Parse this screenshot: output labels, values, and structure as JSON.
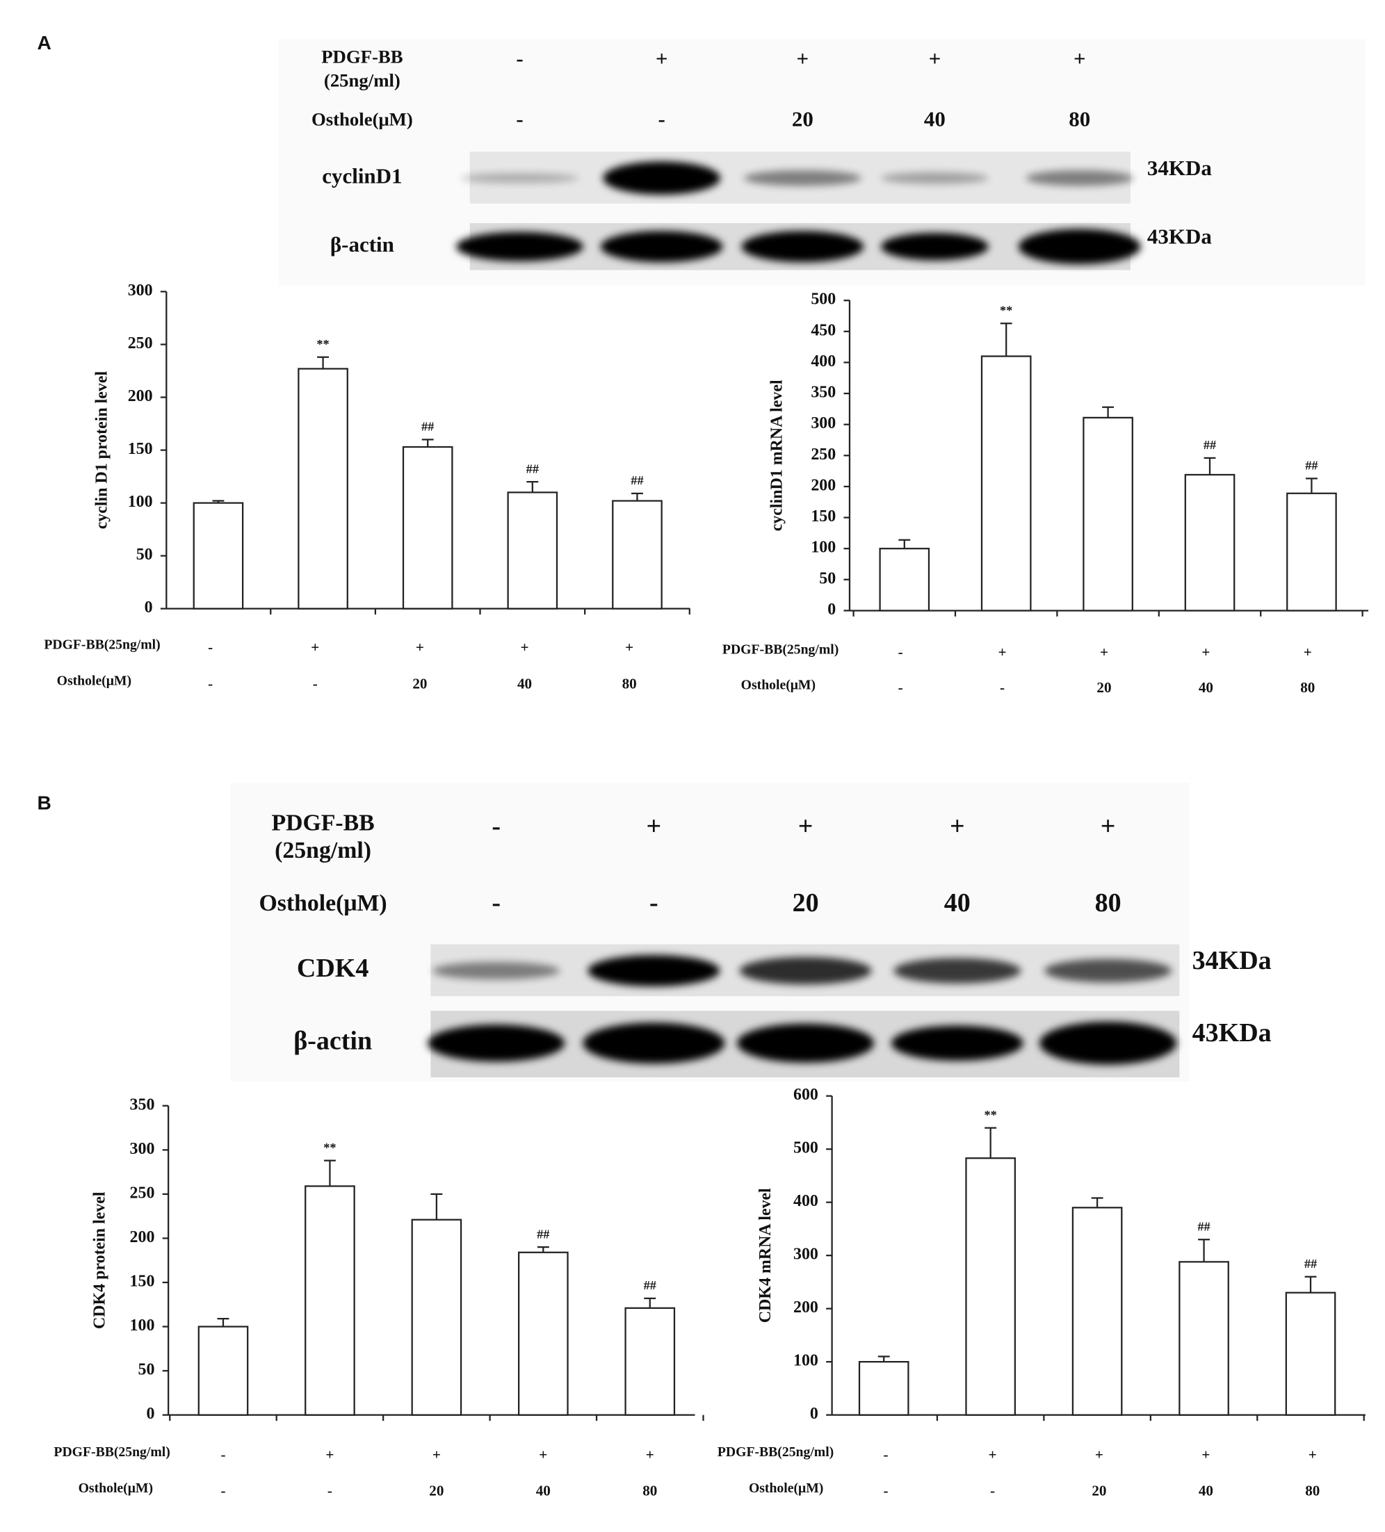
{
  "panel_labels": [
    "A",
    "B"
  ],
  "blots": [
    {
      "treatments": [
        {
          "name_lines": [
            "PDGF-BB",
            "(25ng/ml)"
          ],
          "labels": [
            "-",
            "+",
            "+",
            "+",
            "+"
          ]
        },
        {
          "name_lines": [
            "Osthole(μM)"
          ],
          "labels": [
            "-",
            "-",
            "20",
            "40",
            "80"
          ]
        }
      ],
      "bands": [
        {
          "name": "cyclinD1",
          "size": "34KDa"
        },
        {
          "name": "β-actin",
          "size": "43KDa"
        }
      ]
    },
    {
      "treatments": [
        {
          "name_lines": [
            "PDGF-BB",
            "(25ng/ml)"
          ],
          "labels": [
            "-",
            "+",
            "+",
            "+",
            "+"
          ]
        },
        {
          "name_lines": [
            "Osthole(μM)"
          ],
          "labels": [
            "-",
            "-",
            "20",
            "40",
            "80"
          ]
        }
      ],
      "bands": [
        {
          "name": "CDK4",
          "size": "34KDa"
        },
        {
          "name": "β-actin",
          "size": "43KDa"
        }
      ]
    }
  ],
  "chart_data": [
    {
      "type": "bar",
      "ylabel": "cyclin D1 protein level",
      "color": "#ffffff",
      "values": [
        100,
        227,
        153,
        110,
        102
      ],
      "errors": [
        2,
        11,
        7,
        10,
        7
      ],
      "annotations": [
        null,
        "**",
        "##",
        "##",
        "##"
      ],
      "ylim": [
        0,
        300
      ],
      "yticks": [
        0,
        50,
        100,
        150,
        200,
        250,
        300
      ],
      "treatment_rows": [
        {
          "name": "PDGF-BB(25ng/ml)",
          "labels": [
            "-",
            "+",
            "+",
            "+",
            "+"
          ]
        },
        {
          "name": "Osthole(μM)",
          "labels": [
            "-",
            "-",
            "20",
            "40",
            "80"
          ]
        }
      ]
    },
    {
      "type": "bar",
      "ylabel": "cyclinD1 mRNA level",
      "color": "#ffffff",
      "values": [
        100,
        410,
        311,
        219,
        189
      ],
      "errors": [
        14,
        53,
        17,
        27,
        24
      ],
      "annotations": [
        null,
        "**",
        null,
        "##",
        "##"
      ],
      "ylim": [
        0,
        500
      ],
      "yticks": [
        0,
        50,
        100,
        150,
        200,
        250,
        300,
        350,
        400,
        450,
        500
      ],
      "treatment_rows": [
        {
          "name": "PDGF-BB(25ng/ml)",
          "labels": [
            "-",
            "+",
            "+",
            "+",
            "+"
          ]
        },
        {
          "name": "Osthole(μM)",
          "labels": [
            "-",
            "-",
            "20",
            "40",
            "80"
          ]
        }
      ]
    },
    {
      "type": "bar",
      "ylabel": "CDK4 protein level",
      "color": "#ffffff",
      "values": [
        100,
        259,
        221,
        184,
        121
      ],
      "errors": [
        9,
        29,
        29,
        6,
        11
      ],
      "annotations": [
        null,
        "**",
        null,
        "##",
        "##"
      ],
      "ylim": [
        0,
        350
      ],
      "yticks": [
        0,
        50,
        100,
        150,
        200,
        250,
        300,
        350
      ],
      "treatment_rows": [
        {
          "name": "PDGF-BB(25ng/ml)",
          "labels": [
            "-",
            "+",
            "+",
            "+",
            "+"
          ]
        },
        {
          "name": "Osthole(μM)",
          "labels": [
            "-",
            "-",
            "20",
            "40",
            "80"
          ]
        }
      ]
    },
    {
      "type": "bar",
      "ylabel": "CDK4 mRNA level",
      "color": "#ffffff",
      "values": [
        100,
        483,
        390,
        288,
        230
      ],
      "errors": [
        10,
        57,
        18,
        42,
        30
      ],
      "annotations": [
        null,
        "**",
        null,
        "##",
        "##"
      ],
      "ylim": [
        0,
        600
      ],
      "yticks": [
        0,
        100,
        200,
        300,
        400,
        500,
        600
      ],
      "treatment_rows": [
        {
          "name": "PDGF-BB(25ng/ml)",
          "labels": [
            "-",
            "+",
            "+",
            "+",
            "+"
          ]
        },
        {
          "name": "Osthole(μM)",
          "labels": [
            "-",
            "-",
            "20",
            "40",
            "80"
          ]
        }
      ]
    }
  ]
}
